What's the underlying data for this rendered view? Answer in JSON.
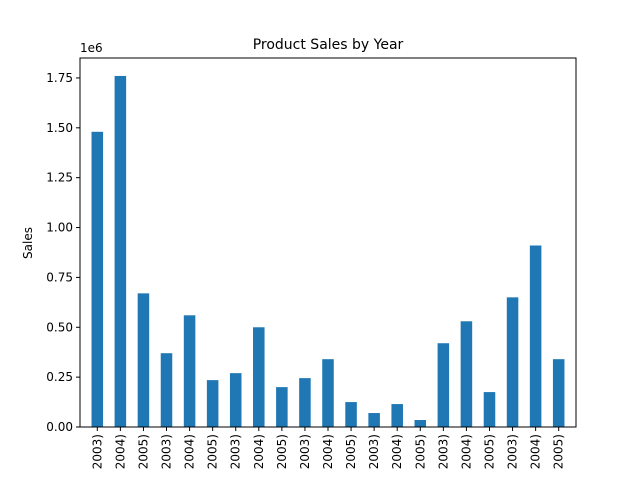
{
  "chart_data": {
    "type": "bar",
    "title": "Product Sales by Year",
    "xlabel": "",
    "ylabel": "Sales",
    "y_scale_label": "1e6",
    "ylim": [
      0,
      1850000
    ],
    "yticks": [
      0,
      250000,
      500000,
      750000,
      1000000,
      1250000,
      1500000,
      1750000
    ],
    "ytick_labels": [
      "0.00",
      "0.25",
      "0.50",
      "0.75",
      "1.00",
      "1.25",
      "1.50",
      "1.75"
    ],
    "grid": false,
    "legend": "none",
    "categories": [
      "2003)",
      "2004)",
      "2005)",
      "2003)",
      "2004)",
      "2005)",
      "2003)",
      "2004)",
      "2005)",
      "2003)",
      "2004)",
      "2005)",
      "2003)",
      "2004)",
      "2005)",
      "2003)",
      "2004)",
      "2005)",
      "2003)",
      "2004)",
      "2005)"
    ],
    "values": [
      1480000,
      1760000,
      670000,
      370000,
      560000,
      235000,
      270000,
      500000,
      200000,
      245000,
      340000,
      125000,
      70000,
      115000,
      35000,
      420000,
      530000,
      175000,
      650000,
      910000,
      340000
    ],
    "bar_color": "#1f77b4"
  }
}
